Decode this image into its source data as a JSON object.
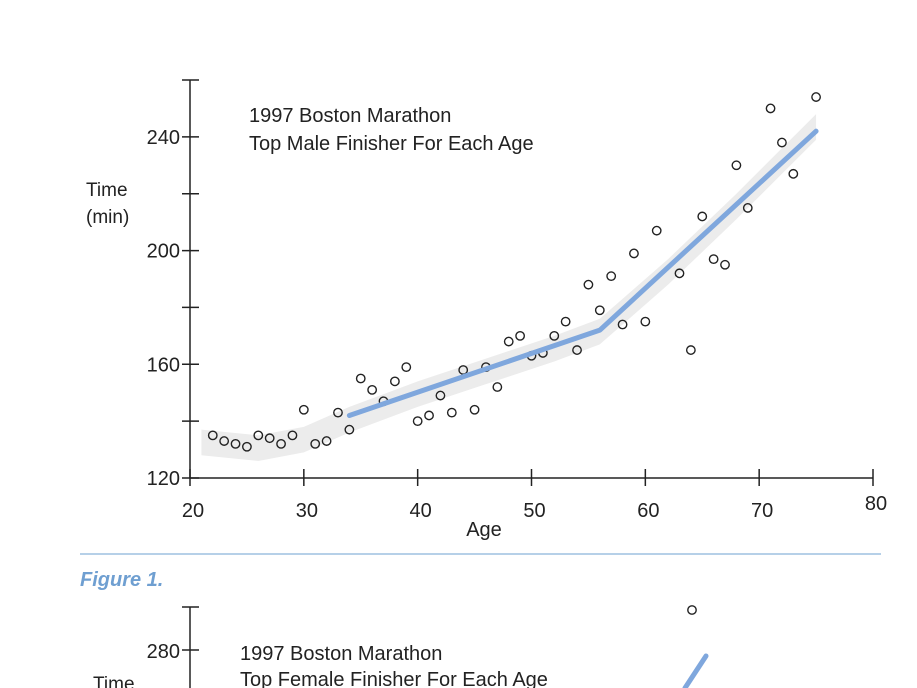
{
  "figure_caption": "Figure 1.",
  "colors": {
    "fit_line": "#7fa7dd",
    "rule": "#9ec1e0",
    "caption": "#6f9fd1",
    "points": "#222222"
  },
  "chart_data": [
    {
      "type": "scatter",
      "title_line1": "1997 Boston Marathon",
      "title_line2": "Top Male Finisher For Each Age",
      "xlabel": "Age",
      "ylabel_line1": "Time",
      "ylabel_line2": "(min)",
      "xlim": [
        20,
        80
      ],
      "ylim": [
        120,
        260
      ],
      "xticks": [
        20,
        30,
        40,
        50,
        60,
        70,
        80
      ],
      "yticks": [
        120,
        160,
        200,
        240
      ],
      "grid": false,
      "points": [
        [
          22,
          135
        ],
        [
          23,
          133
        ],
        [
          24,
          132
        ],
        [
          25,
          131
        ],
        [
          26,
          135
        ],
        [
          27,
          134
        ],
        [
          28,
          132
        ],
        [
          29,
          135
        ],
        [
          30,
          144
        ],
        [
          31,
          132
        ],
        [
          32,
          133
        ],
        [
          33,
          143
        ],
        [
          34,
          137
        ],
        [
          35,
          155
        ],
        [
          36,
          151
        ],
        [
          37,
          147
        ],
        [
          38,
          154
        ],
        [
          39,
          159
        ],
        [
          40,
          140
        ],
        [
          41,
          142
        ],
        [
          42,
          149
        ],
        [
          43,
          143
        ],
        [
          44,
          158
        ],
        [
          45,
          144
        ],
        [
          46,
          159
        ],
        [
          47,
          152
        ],
        [
          48,
          168
        ],
        [
          49,
          170
        ],
        [
          50,
          163
        ],
        [
          51,
          164
        ],
        [
          52,
          170
        ],
        [
          53,
          175
        ],
        [
          54,
          165
        ],
        [
          55,
          188
        ],
        [
          56,
          179
        ],
        [
          57,
          191
        ],
        [
          58,
          174
        ],
        [
          59,
          199
        ],
        [
          60,
          175
        ],
        [
          61,
          207
        ],
        [
          63,
          192
        ],
        [
          64,
          165
        ],
        [
          65,
          212
        ],
        [
          66,
          197
        ],
        [
          67,
          195
        ],
        [
          68,
          230
        ],
        [
          69,
          215
        ],
        [
          71,
          250
        ],
        [
          72,
          238
        ],
        [
          73,
          227
        ],
        [
          75,
          254
        ]
      ],
      "fit_line": {
        "x": [
          34,
          56,
          75
        ],
        "y": [
          142,
          172,
          242
        ]
      }
    },
    {
      "type": "scatter",
      "title_line1": "1997 Boston Marathon",
      "title_line2": "Top Female Finisher For Each Age",
      "ylabel_line1": "Time",
      "ytick_visible": 280,
      "points": [
        [
          64,
          299
        ]
      ]
    }
  ]
}
